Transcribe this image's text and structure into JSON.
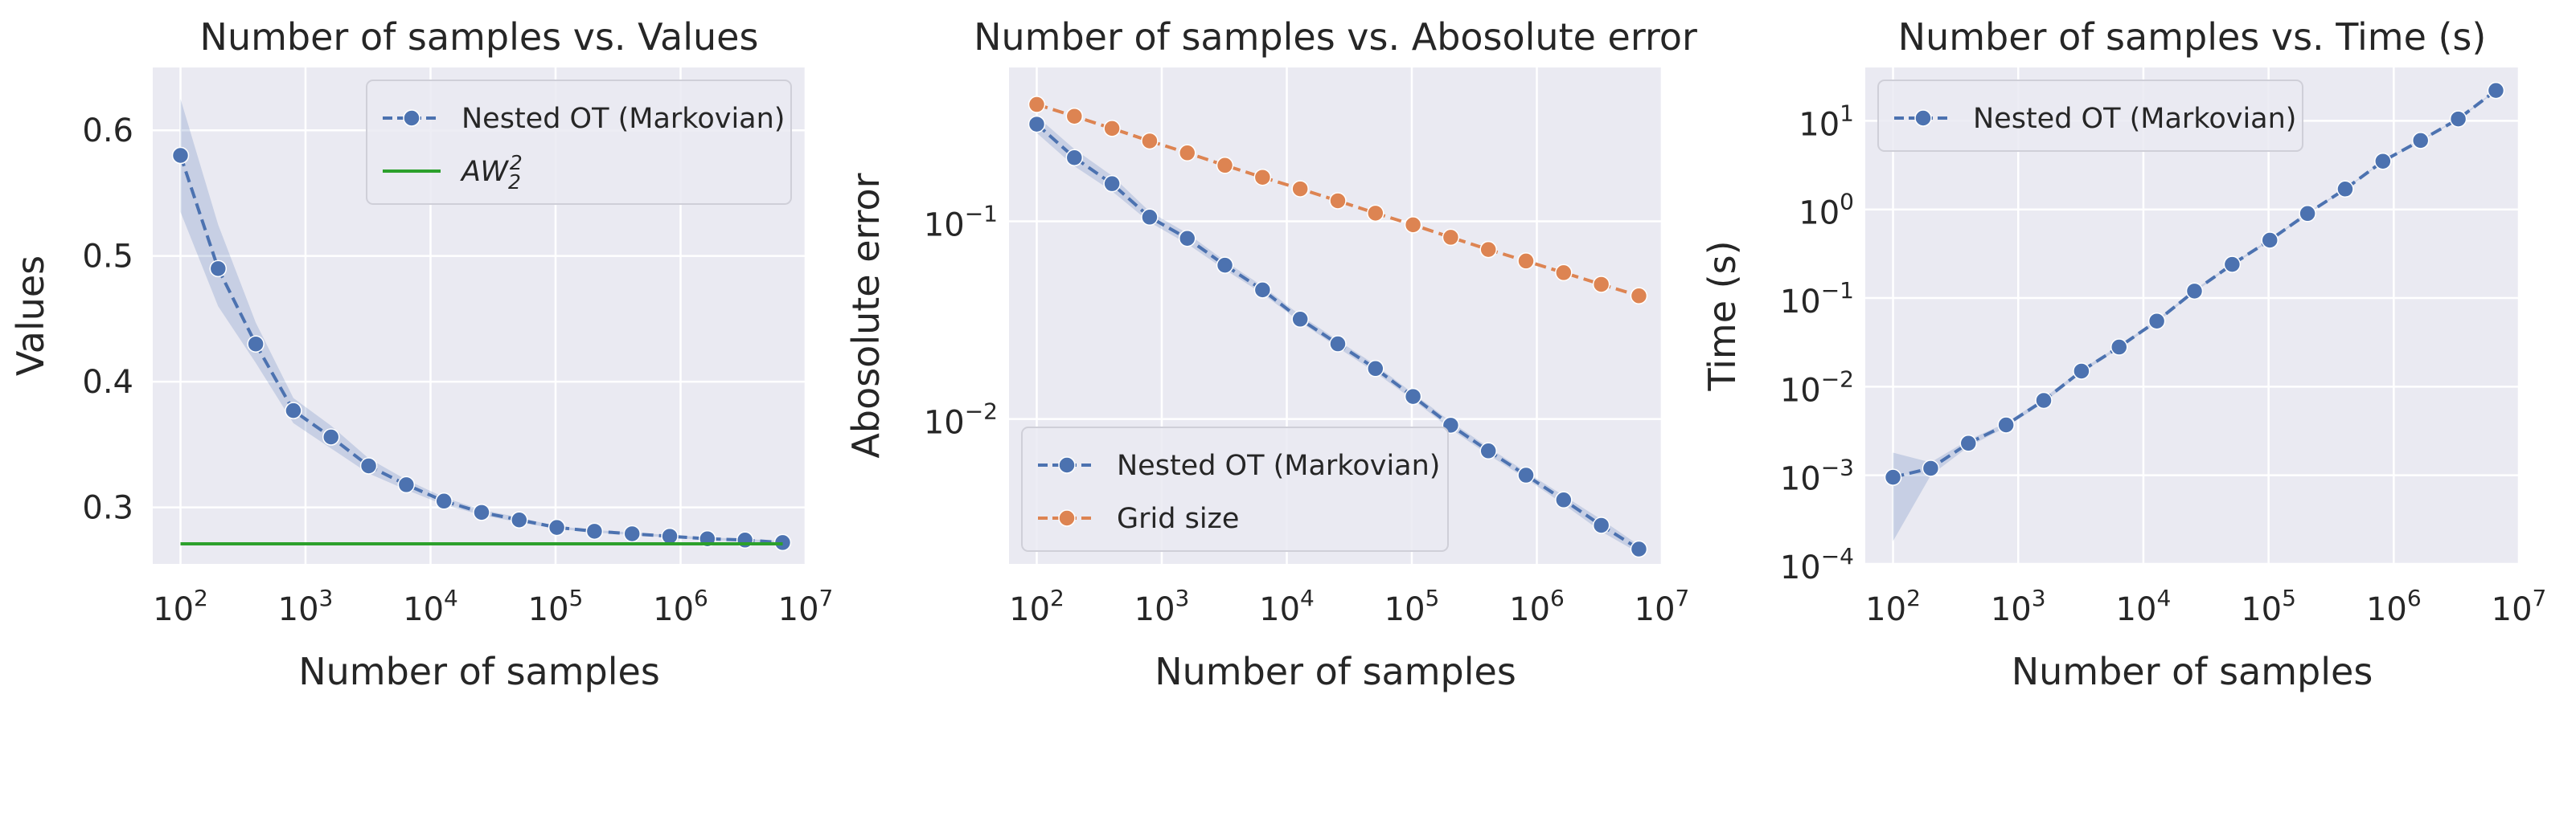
{
  "style": {
    "axes_bg": "#eaeaf2",
    "grid": "#ffffff",
    "blue": "#4c72b0",
    "orange": "#dd8452",
    "green": "#2ca02c",
    "band_blue": "#4c72b0",
    "text": "#262626"
  },
  "chart_data": [
    {
      "type": "line",
      "title": "Number of samples vs. Values",
      "xlabel": "Number of samples",
      "ylabel": "Values",
      "xscale": "log",
      "yscale": "linear",
      "xlim": [
        60,
        10000000
      ],
      "ylim": [
        0.255,
        0.65
      ],
      "grid": true,
      "legend_position": "top-right",
      "xticks": [
        {
          "value": 100,
          "base": "10",
          "exp": "2"
        },
        {
          "value": 1000,
          "base": "10",
          "exp": "3"
        },
        {
          "value": 10000,
          "base": "10",
          "exp": "4"
        },
        {
          "value": 100000,
          "base": "10",
          "exp": "5"
        },
        {
          "value": 1000000,
          "base": "10",
          "exp": "6"
        },
        {
          "value": 10000000,
          "base": "10",
          "exp": "7"
        }
      ],
      "yticks": [
        {
          "value": 0.3,
          "label": "0.3"
        },
        {
          "value": 0.4,
          "label": "0.4"
        },
        {
          "value": 0.5,
          "label": "0.5"
        },
        {
          "value": 0.6,
          "label": "0.6"
        }
      ],
      "series": [
        {
          "name": "Nested OT (Markovian)",
          "style": "dashed-marker",
          "color": "#4c72b0",
          "x": [
            100,
            200,
            400,
            800,
            1600,
            3200,
            6400,
            12800,
            25600,
            51200,
            102400,
            204800,
            409600,
            819200,
            1638400,
            3276800,
            6553600
          ],
          "y": [
            0.58,
            0.49,
            0.43,
            0.377,
            0.356,
            0.333,
            0.318,
            0.305,
            0.296,
            0.29,
            0.284,
            0.281,
            0.279,
            0.277,
            0.275,
            0.274,
            0.272
          ],
          "band_low": [
            0.535,
            0.46,
            0.415,
            0.367,
            0.347,
            0.327,
            0.314,
            0.302,
            0.294,
            0.288,
            0.283,
            0.28,
            0.278,
            0.276,
            0.274,
            0.273,
            0.271
          ],
          "band_high": [
            0.625,
            0.525,
            0.447,
            0.387,
            0.365,
            0.339,
            0.322,
            0.308,
            0.298,
            0.292,
            0.285,
            0.282,
            0.28,
            0.278,
            0.276,
            0.275,
            0.273
          ]
        },
        {
          "name": "AW",
          "name_sup": "2",
          "name_sub": "2",
          "style": "solid",
          "color": "#2ca02c",
          "x": [
            100,
            6553600
          ],
          "y": [
            0.271,
            0.271
          ]
        }
      ]
    },
    {
      "type": "line",
      "title": "Number of samples vs. Abosolute error",
      "xlabel": "Number of samples",
      "ylabel": "Abosolute error",
      "xscale": "log",
      "yscale": "log",
      "xlim": [
        60,
        10000000
      ],
      "ylim": [
        0.00185,
        0.6
      ],
      "grid": true,
      "legend_position": "bottom-left",
      "xticks": [
        {
          "value": 100,
          "base": "10",
          "exp": "2"
        },
        {
          "value": 1000,
          "base": "10",
          "exp": "3"
        },
        {
          "value": 10000,
          "base": "10",
          "exp": "4"
        },
        {
          "value": 100000,
          "base": "10",
          "exp": "5"
        },
        {
          "value": 1000000,
          "base": "10",
          "exp": "6"
        },
        {
          "value": 10000000,
          "base": "10",
          "exp": "7"
        }
      ],
      "yticks": [
        {
          "value": 0.01,
          "base": "10",
          "exp": "−2"
        },
        {
          "value": 0.1,
          "base": "10",
          "exp": "−1"
        }
      ],
      "series": [
        {
          "name": "Nested OT (Markovian)",
          "style": "dashed-marker",
          "color": "#4c72b0",
          "x": [
            100,
            200,
            400,
            800,
            1600,
            3200,
            6400,
            12800,
            25600,
            51200,
            102400,
            204800,
            409600,
            819200,
            1638400,
            3276800,
            6553600
          ],
          "y": [
            0.31,
            0.21,
            0.155,
            0.105,
            0.082,
            0.06,
            0.045,
            0.032,
            0.024,
            0.018,
            0.013,
            0.0093,
            0.0069,
            0.0052,
            0.0039,
            0.0029,
            0.0022
          ],
          "band_low": [
            0.28,
            0.19,
            0.142,
            0.099,
            0.077,
            0.057,
            0.043,
            0.031,
            0.023,
            0.0172,
            0.0125,
            0.0089,
            0.0066,
            0.005,
            0.0037,
            0.0027,
            0.0021
          ],
          "band_high": [
            0.34,
            0.232,
            0.17,
            0.112,
            0.087,
            0.063,
            0.047,
            0.0335,
            0.025,
            0.0188,
            0.0135,
            0.0097,
            0.0072,
            0.0054,
            0.0041,
            0.0031,
            0.0023
          ]
        },
        {
          "name": "Grid size",
          "style": "dashed-marker",
          "color": "#dd8452",
          "x": [
            100,
            200,
            400,
            800,
            1600,
            3200,
            6400,
            12800,
            25600,
            51200,
            102400,
            204800,
            409600,
            819200,
            1638400,
            3276800,
            6553600
          ],
          "y": [
            0.39,
            0.34,
            0.295,
            0.255,
            0.222,
            0.192,
            0.167,
            0.146,
            0.127,
            0.11,
            0.096,
            0.083,
            0.072,
            0.063,
            0.055,
            0.048,
            0.042
          ]
        }
      ]
    },
    {
      "type": "line",
      "title": "Number of samples vs. Time (s)",
      "xlabel": "Number of samples",
      "ylabel": "Time (s)",
      "xscale": "log",
      "yscale": "log",
      "xlim": [
        60,
        10000000
      ],
      "ylim": [
        0.0001,
        40
      ],
      "grid": true,
      "legend_position": "top-left",
      "xticks": [
        {
          "value": 100,
          "base": "10",
          "exp": "2"
        },
        {
          "value": 1000,
          "base": "10",
          "exp": "3"
        },
        {
          "value": 10000,
          "base": "10",
          "exp": "4"
        },
        {
          "value": 100000,
          "base": "10",
          "exp": "5"
        },
        {
          "value": 1000000,
          "base": "10",
          "exp": "6"
        },
        {
          "value": 10000000,
          "base": "10",
          "exp": "7"
        }
      ],
      "yticks": [
        {
          "value": 0.0001,
          "base": "10",
          "exp": "−4"
        },
        {
          "value": 0.001,
          "base": "10",
          "exp": "−3"
        },
        {
          "value": 0.01,
          "base": "10",
          "exp": "−2"
        },
        {
          "value": 0.1,
          "base": "10",
          "exp": "−1"
        },
        {
          "value": 1,
          "base": "10",
          "exp": "0"
        },
        {
          "value": 10,
          "base": "10",
          "exp": "1"
        }
      ],
      "series": [
        {
          "name": "Nested OT (Markovian)",
          "style": "dashed-marker",
          "color": "#4c72b0",
          "x": [
            100,
            200,
            400,
            800,
            1600,
            3200,
            6400,
            12800,
            25600,
            51200,
            102400,
            204800,
            409600,
            819200,
            1638400,
            3276800,
            6553600
          ],
          "y": [
            0.00095,
            0.0012,
            0.0023,
            0.0037,
            0.007,
            0.015,
            0.028,
            0.055,
            0.12,
            0.24,
            0.45,
            0.9,
            1.7,
            3.5,
            6.0,
            10.5,
            22
          ],
          "band_low": [
            0.00018,
            0.001,
            0.0021,
            0.0035,
            0.0066,
            0.0143,
            0.027,
            0.053,
            0.116,
            0.233,
            0.44,
            0.88,
            1.67,
            3.45,
            5.9,
            10.3,
            21.5
          ],
          "band_high": [
            0.0018,
            0.0014,
            0.0025,
            0.0039,
            0.0074,
            0.0157,
            0.029,
            0.057,
            0.124,
            0.247,
            0.46,
            0.92,
            1.73,
            3.55,
            6.1,
            10.7,
            22.5
          ]
        }
      ]
    }
  ]
}
